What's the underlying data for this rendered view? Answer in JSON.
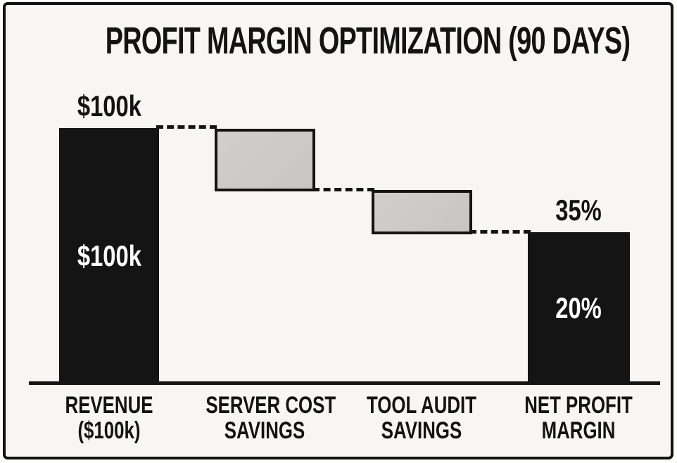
{
  "chart_data": {
    "type": "waterfall",
    "title": "PROFIT MARGIN OPTIMIZATION (90 DAYS)",
    "xlabel": "",
    "ylabel": "",
    "grid": false,
    "legend": false,
    "categories": [
      "REVENUE ($100k)",
      "SERVER COST SAVINGS",
      "TOOL AUDIT SAVINGS",
      "NET PROFIT MARGIN"
    ],
    "bars": [
      {
        "category_line1": "REVENUE",
        "category_line2": "($100k)",
        "style": "solid-black",
        "above_label": "$100k",
        "inside_label": "$100k",
        "span_pct_of_baseline": [
          0,
          100
        ]
      },
      {
        "category_line1": "SERVER COST",
        "category_line2": "SAVINGS",
        "style": "outlined-gray-floating",
        "span_pct_of_baseline": [
          76,
          100
        ]
      },
      {
        "category_line1": "TOOL AUDIT",
        "category_line2": "SAVINGS",
        "style": "outlined-gray-floating",
        "span_pct_of_baseline": [
          58,
          76
        ]
      },
      {
        "category_line1": "NET PROFIT",
        "category_line2": "MARGIN",
        "style": "solid-black",
        "above_label": "35%",
        "inside_label": "20%",
        "span_pct_of_baseline": [
          0,
          58
        ]
      }
    ],
    "connectors": [
      {
        "from": "REVENUE bar top",
        "to": "SERVER COST SAVINGS bar top",
        "style": "dashed"
      },
      {
        "from": "SERVER COST SAVINGS bar bottom",
        "to": "TOOL AUDIT SAVINGS bar top",
        "style": "dashed"
      },
      {
        "from": "TOOL AUDIT SAVINGS bar bottom",
        "to": "NET PROFIT MARGIN bar top",
        "style": "dashed"
      }
    ],
    "colors": {
      "solid_bar": "#141414",
      "outlined_bar_fill": "#c9c8c4",
      "outlined_bar_border": "#141414",
      "baseline": "#141414",
      "text": "#131313",
      "inside_text": "#ffffff",
      "background": "#f7f6f2",
      "frame_border": "#121212"
    }
  }
}
